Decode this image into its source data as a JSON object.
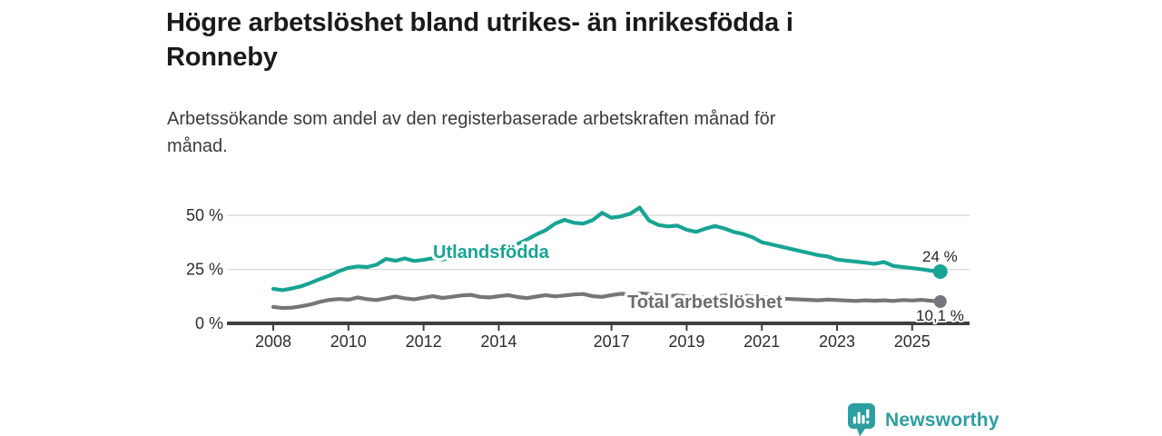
{
  "header": {
    "title": "Högre arbetslöshet bland utrikes- än inrikesfödda i\nRonneby",
    "subtitle": "Arbetssökande som andel av den registerbaserade arbetskraften månad för\nmånad."
  },
  "chart_data": {
    "type": "line",
    "title": "Högre arbetslöshet bland utrikes- än inrikesfödda i Ronneby",
    "subtitle": "Arbetssökande som andel av den registerbaserade arbetskraften månad för månad.",
    "values_unit": "%",
    "x_start": 2008.0,
    "x_step": 0.25,
    "x_end": 2025.75,
    "ylim": [
      0,
      57
    ],
    "grid": "horizontal",
    "grid_color": "#d9d9d9",
    "axis_color": "#3f3f3f",
    "x_axis": {
      "ticks": [
        2008,
        2010,
        2012,
        2014,
        2017,
        2019,
        2021,
        2023,
        2025
      ]
    },
    "y_axis": {
      "ticks": [
        {
          "value": 0,
          "label": "0 %"
        },
        {
          "value": 25,
          "label": "25 %"
        },
        {
          "value": 50,
          "label": "50 %"
        }
      ]
    },
    "series": [
      {
        "name": "Utlandsfödda",
        "color": "#18a494",
        "end_label": "24 %",
        "end_value": 24,
        "values": [
          16.0,
          15.4,
          16.2,
          17.2,
          18.8,
          20.6,
          22.2,
          24.2,
          25.7,
          26.4,
          26.1,
          27.2,
          29.9,
          29.0,
          30.1,
          28.9,
          29.4,
          30.2,
          29.5,
          30.6,
          31.0,
          31.8,
          32.2,
          33.0,
          33.8,
          35.2,
          36.8,
          38.8,
          41.2,
          43.2,
          46.2,
          48.0,
          46.6,
          46.2,
          47.8,
          51.2,
          48.9,
          49.6,
          50.8,
          53.6,
          47.6,
          45.6,
          44.9,
          45.3,
          43.4,
          42.4,
          43.9,
          45.1,
          44.0,
          42.4,
          41.4,
          39.9,
          37.6,
          36.6,
          35.6,
          34.6,
          33.6,
          32.6,
          31.6,
          31.0,
          29.6,
          29.1,
          28.6,
          28.1,
          27.6,
          28.4,
          26.6,
          26.1,
          25.6,
          25.1,
          24.4,
          24.0
        ]
      },
      {
        "name": "Total arbetslöshet",
        "color": "#76767a",
        "label_color": "#6d6d70",
        "end_label": "10,1 %",
        "end_value": 10.1,
        "values": [
          7.6,
          7.1,
          7.3,
          7.9,
          8.8,
          10.0,
          10.9,
          11.3,
          11.0,
          12.0,
          11.2,
          10.8,
          11.6,
          12.4,
          11.6,
          11.1,
          11.9,
          12.6,
          11.8,
          12.3,
          12.9,
          13.2,
          12.3,
          12.0,
          12.6,
          13.1,
          12.2,
          11.7,
          12.4,
          13.1,
          12.5,
          12.9,
          13.4,
          13.6,
          12.6,
          12.3,
          13.1,
          13.7,
          13.3,
          13.9,
          13.6,
          13.1,
          12.6,
          12.9,
          12.6,
          12.1,
          11.9,
          12.3,
          12.9,
          13.3,
          12.9,
          12.5,
          12.1,
          11.9,
          11.5,
          11.3,
          11.1,
          10.9,
          10.7,
          11.0,
          10.8,
          10.6,
          10.4,
          10.7,
          10.5,
          10.7,
          10.4,
          10.8,
          10.6,
          10.9,
          10.5,
          10.1
        ]
      }
    ]
  },
  "footer": {
    "brand": "Newsworthy",
    "brand_color": "#2d9fa1"
  }
}
